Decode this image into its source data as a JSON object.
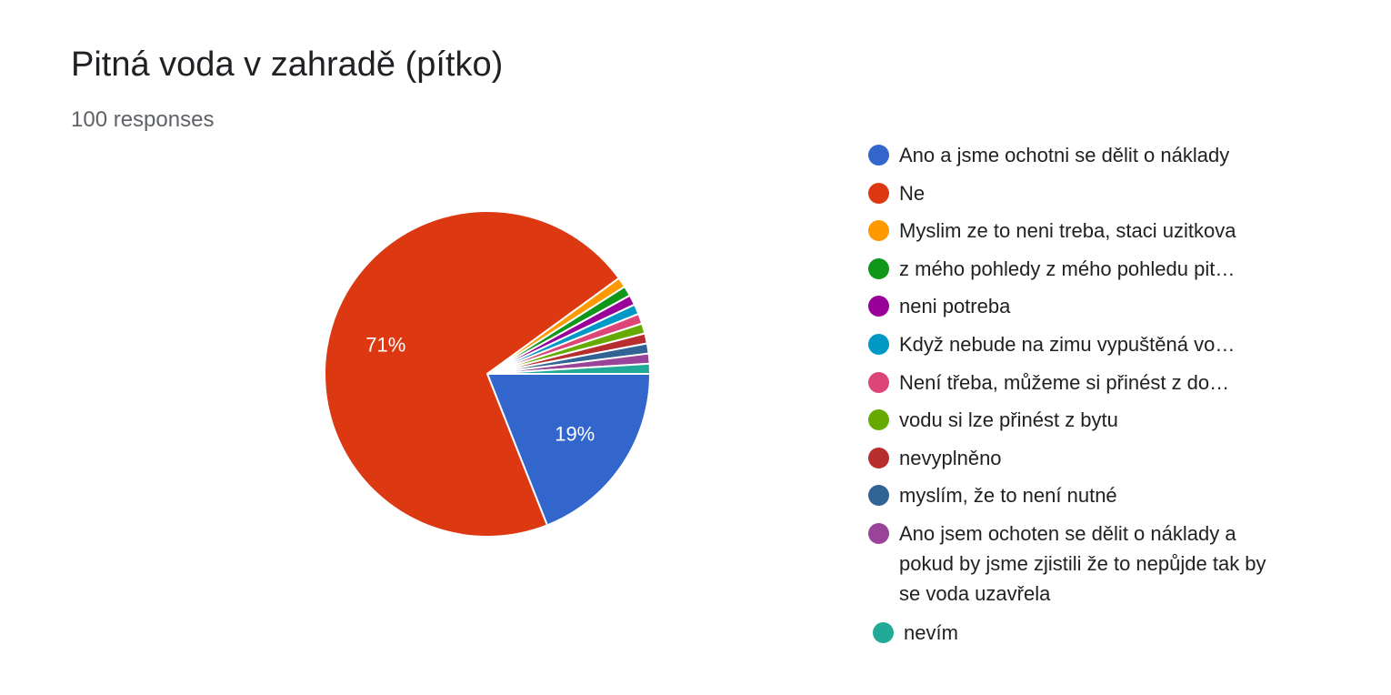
{
  "header": {
    "title": "Pitná voda v zahradě (pítko)",
    "responses": "100 responses"
  },
  "chart_data": {
    "type": "pie",
    "start_angle_deg": 90,
    "direction": "clockwise",
    "slices": [
      {
        "label": "Ano a jsme ochotni se dělit o náklady",
        "value": 19,
        "color": "#3366cc",
        "data_label": "19%"
      },
      {
        "label": "Ne",
        "value": 71,
        "color": "#dc3912",
        "data_label": "71%"
      },
      {
        "label": "Myslim ze to neni treba, staci uzitkova",
        "value": 1,
        "color": "#ff9900",
        "data_label": ""
      },
      {
        "label": "z mého pohledy z mého pohledu pit…",
        "value": 1,
        "color": "#109618",
        "data_label": ""
      },
      {
        "label": "neni potreba",
        "value": 1,
        "color": "#990099",
        "data_label": ""
      },
      {
        "label": "Když nebude na zimu vypuštěná vo…",
        "value": 1,
        "color": "#0099c6",
        "data_label": ""
      },
      {
        "label": "Není třeba, můžeme si přinést z do…",
        "value": 1,
        "color": "#dd4477",
        "data_label": ""
      },
      {
        "label": "vodu si lze přinést z bytu",
        "value": 1,
        "color": "#66aa00",
        "data_label": ""
      },
      {
        "label": "nevyplněno",
        "value": 1,
        "color": "#b82e2e",
        "data_label": ""
      },
      {
        "label": "myslím, že to není nutné",
        "value": 1,
        "color": "#316395",
        "data_label": ""
      },
      {
        "label": "Ano jsem ochoten se dělit o náklady a pokud by jsme zjistili že to nepůjde tak by se voda uzavřela",
        "value": 1,
        "color": "#994499",
        "data_label": ""
      },
      {
        "label": "nevím",
        "value": 1,
        "color": "#22aa99",
        "data_label": ""
      }
    ],
    "legend_position": "right"
  }
}
